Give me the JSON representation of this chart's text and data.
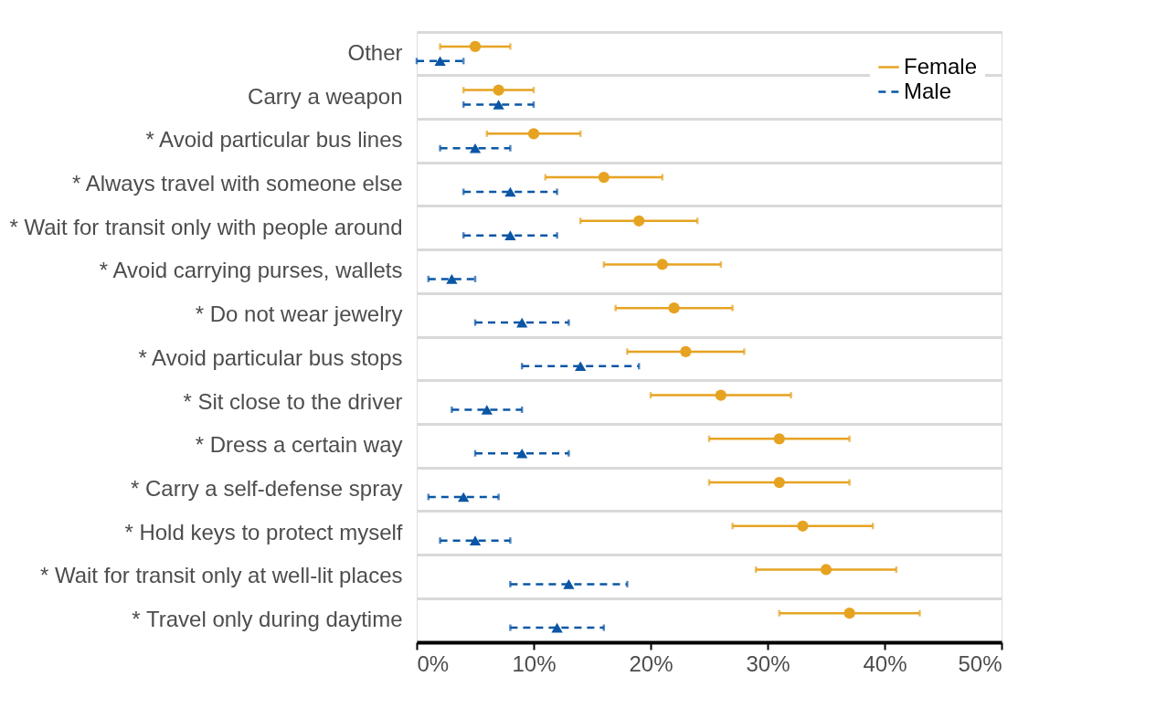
{
  "chart_data": {
    "type": "scatter",
    "orientation": "horizontal",
    "categories": [
      "Other",
      "Carry a weapon",
      "* Avoid particular bus lines",
      "* Always travel with someone else",
      "* Wait for transit only with people around",
      "* Avoid carrying purses, wallets",
      "* Do not wear jewelry",
      "* Avoid particular bus stops",
      "* Sit close to the driver",
      "* Dress a certain way",
      "* Carry a self-defense spray",
      "* Hold keys to protect myself",
      "* Wait for transit only at well-lit places",
      "* Travel only during daytime"
    ],
    "series": [
      {
        "name": "Female",
        "color": "#e6a322",
        "marker": "circle",
        "line_style": "solid",
        "values": [
          5,
          7,
          10,
          16,
          19,
          21,
          22,
          23,
          26,
          31,
          31,
          33,
          35,
          37
        ],
        "errors": [
          [
            2,
            8
          ],
          [
            4,
            10
          ],
          [
            6,
            14
          ],
          [
            11,
            21
          ],
          [
            14,
            24
          ],
          [
            16,
            26
          ],
          [
            17,
            27
          ],
          [
            18,
            28
          ],
          [
            20,
            32
          ],
          [
            25,
            37
          ],
          [
            25,
            37
          ],
          [
            27,
            39
          ],
          [
            29,
            41
          ],
          [
            31,
            43
          ]
        ]
      },
      {
        "name": "Male",
        "color": "#0a56a5",
        "marker": "triangle",
        "line_style": "dashed",
        "values": [
          2,
          7,
          5,
          8,
          8,
          3,
          9,
          14,
          6,
          9,
          4,
          5,
          13,
          12
        ],
        "errors": [
          [
            0,
            4
          ],
          [
            4,
            10
          ],
          [
            2,
            8
          ],
          [
            4,
            12
          ],
          [
            4,
            12
          ],
          [
            1,
            5
          ],
          [
            5,
            13
          ],
          [
            9,
            19
          ],
          [
            3,
            9
          ],
          [
            5,
            13
          ],
          [
            1,
            7
          ],
          [
            2,
            8
          ],
          [
            8,
            18
          ],
          [
            8,
            16
          ]
        ]
      }
    ],
    "xlim": [
      0,
      50
    ],
    "xticks": [
      {
        "value": 0,
        "label": "0%"
      },
      {
        "value": 10,
        "label": "10%"
      },
      {
        "value": 20,
        "label": "20%"
      },
      {
        "value": 30,
        "label": "30%"
      },
      {
        "value": 40,
        "label": "40%"
      },
      {
        "value": 50,
        "label": "50%"
      }
    ],
    "grid": "y",
    "legend": "top right"
  }
}
